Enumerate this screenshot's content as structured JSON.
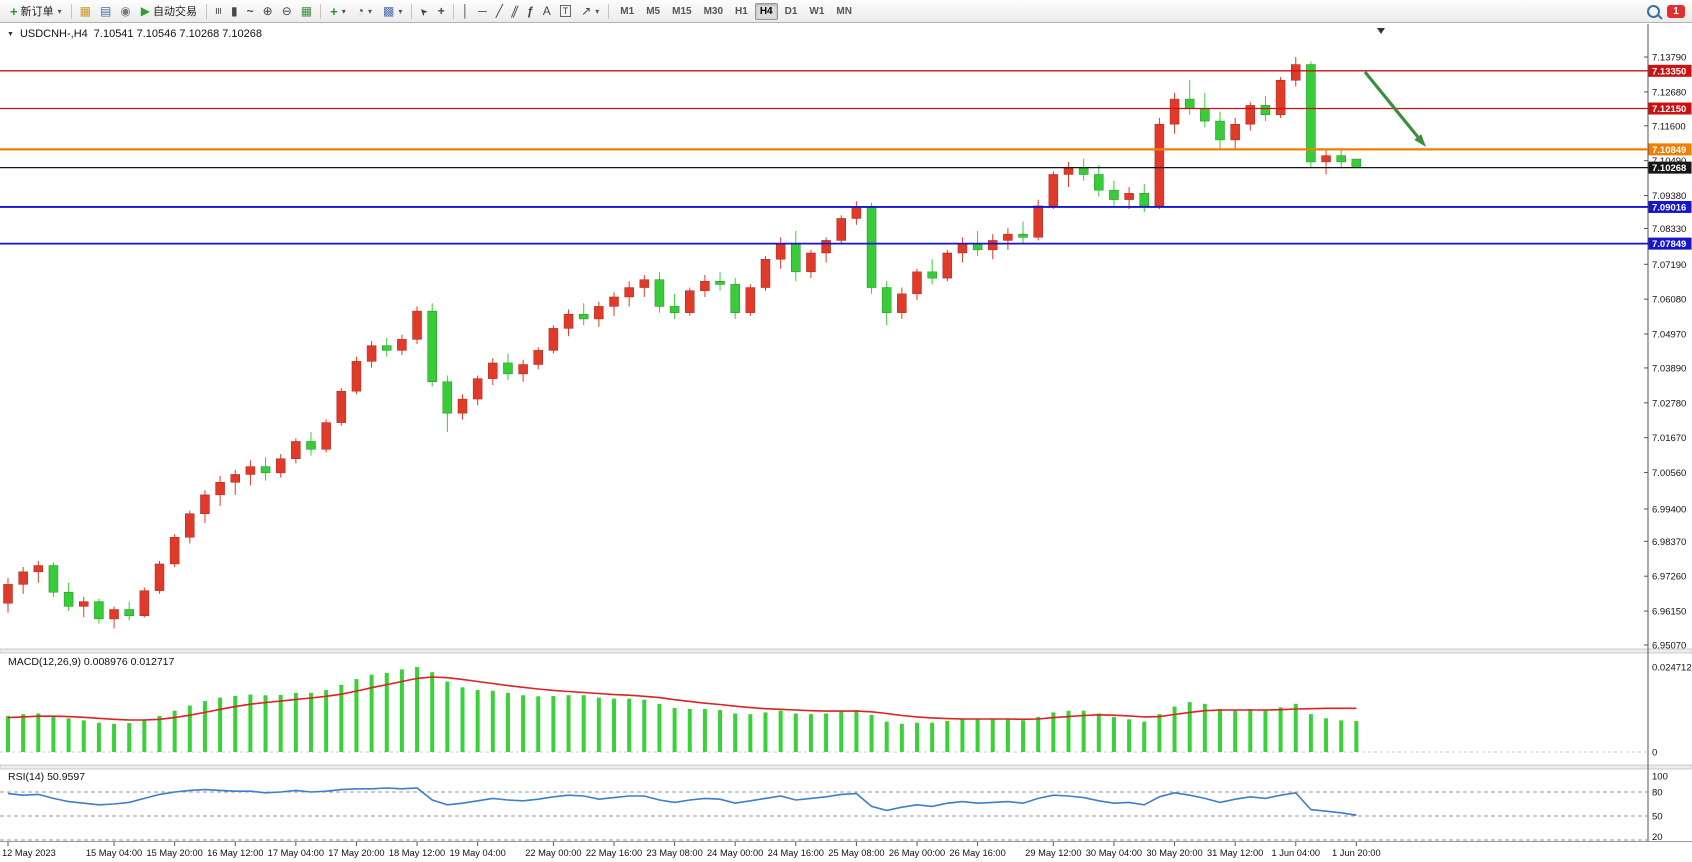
{
  "toolbar": {
    "new_order": "新订单",
    "autotrade": "自动交易",
    "timeframes": [
      "M1",
      "M5",
      "M15",
      "M30",
      "H1",
      "H4",
      "D1",
      "W1",
      "MN"
    ],
    "active_timeframe": "H4",
    "notification_count": "1"
  },
  "icons": {
    "collapse": "▼",
    "caret": "▾",
    "plus": "+",
    "charts": "▦",
    "profiles": "▤",
    "data_window": "◉",
    "play": "▶",
    "bars": "≡",
    "candle": "▮",
    "line": "~",
    "zoom_in": "⊕",
    "zoom_out": "⊖",
    "tile": "▦",
    "clock": "◔",
    "template": "▩",
    "cursor": "➤",
    "crosshair": "+",
    "vline": "│",
    "hline": "─",
    "trendline": "╱",
    "channel": "∥",
    "fibonacci": "ƒ",
    "text": "A",
    "text_label": "T",
    "shapes": "↗",
    "scroll_marker": "▼"
  },
  "chart_data": {
    "type": "candlestick",
    "symbol": "USDCNH-,H4",
    "quote_string": "7.10541 7.10546 7.10268 7.10268",
    "current": {
      "open": 7.10541,
      "high": 7.10546,
      "low": 7.10268,
      "close": 7.10268
    },
    "bull_color": "#e03a2a",
    "bear_color": "#39cc39",
    "bull_border": "#a8281c",
    "bear_border": "#1d8f1d",
    "y_axis_labels": [
      "7.13790",
      "7.12680",
      "7.11600",
      "7.10490",
      "7.09380",
      "7.08330",
      "7.07190",
      "7.06080",
      "7.04970",
      "7.03890",
      "7.02780",
      "7.01670",
      "7.00560",
      "6.99400",
      "6.98370",
      "6.97260",
      "6.96150",
      "6.95070"
    ],
    "ylim": [
      6.9507,
      7.1379
    ],
    "candles": [
      [
        6.964,
        6.972,
        6.961,
        6.97
      ],
      [
        6.97,
        6.9755,
        6.967,
        6.974
      ],
      [
        6.974,
        6.9775,
        6.9705,
        6.976
      ],
      [
        6.976,
        6.977,
        6.966,
        6.9675
      ],
      [
        6.9675,
        6.9705,
        6.9615,
        6.963
      ],
      [
        6.963,
        6.966,
        6.9595,
        6.9645
      ],
      [
        6.9645,
        6.9655,
        6.9575,
        6.959
      ],
      [
        6.959,
        6.963,
        6.956,
        6.962
      ],
      [
        6.962,
        6.9645,
        6.9585,
        6.96
      ],
      [
        6.96,
        6.969,
        6.9595,
        6.968
      ],
      [
        6.968,
        6.9775,
        6.967,
        6.9765
      ],
      [
        6.9765,
        6.986,
        6.9755,
        6.985
      ],
      [
        6.985,
        6.9935,
        6.983,
        6.9925
      ],
      [
        6.9925,
        7.0,
        6.9895,
        6.9985
      ],
      [
        6.9985,
        7.0045,
        6.995,
        7.0025
      ],
      [
        7.0025,
        7.0065,
        6.9985,
        7.005
      ],
      [
        7.005,
        7.0095,
        7.0015,
        7.0075
      ],
      [
        7.0075,
        7.0105,
        7.003,
        7.0055
      ],
      [
        7.0055,
        7.0115,
        7.004,
        7.01
      ],
      [
        7.01,
        7.0165,
        7.0085,
        7.0155
      ],
      [
        7.0155,
        7.0185,
        7.011,
        7.013
      ],
      [
        7.013,
        7.0225,
        7.012,
        7.0215
      ],
      [
        7.0215,
        7.0325,
        7.0205,
        7.0315
      ],
      [
        7.0315,
        7.0425,
        7.0305,
        7.041
      ],
      [
        7.041,
        7.0475,
        7.039,
        7.046
      ],
      [
        7.046,
        7.0485,
        7.0425,
        7.0445
      ],
      [
        7.0445,
        7.0495,
        7.043,
        7.048
      ],
      [
        7.048,
        7.0585,
        7.0465,
        7.057
      ],
      [
        7.057,
        7.0595,
        7.033,
        7.0345
      ],
      [
        7.0345,
        7.0365,
        7.0185,
        7.0245
      ],
      [
        7.0245,
        7.0305,
        7.0225,
        7.029
      ],
      [
        7.029,
        7.0365,
        7.027,
        7.0355
      ],
      [
        7.0355,
        7.042,
        7.0335,
        7.0405
      ],
      [
        7.0405,
        7.0435,
        7.035,
        7.037
      ],
      [
        7.037,
        7.0415,
        7.0345,
        7.04
      ],
      [
        7.04,
        7.0455,
        7.0385,
        7.0445
      ],
      [
        7.0445,
        7.0525,
        7.0435,
        7.0515
      ],
      [
        7.0515,
        7.0575,
        7.049,
        7.056
      ],
      [
        7.056,
        7.0595,
        7.0525,
        7.0545
      ],
      [
        7.0545,
        7.06,
        7.052,
        7.0585
      ],
      [
        7.0585,
        7.063,
        7.0555,
        7.0615
      ],
      [
        7.0615,
        7.0665,
        7.0585,
        7.0645
      ],
      [
        7.0645,
        7.0685,
        7.0615,
        7.067
      ],
      [
        7.067,
        7.0695,
        7.0565,
        7.0585
      ],
      [
        7.0585,
        7.0625,
        7.0545,
        7.0565
      ],
      [
        7.0565,
        7.0645,
        7.0555,
        7.0635
      ],
      [
        7.0635,
        7.0685,
        7.0615,
        7.0665
      ],
      [
        7.0665,
        7.0695,
        7.0635,
        7.0655
      ],
      [
        7.0655,
        7.0675,
        7.0545,
        7.0565
      ],
      [
        7.0565,
        7.0655,
        7.0555,
        7.0645
      ],
      [
        7.0645,
        7.0745,
        7.0635,
        7.0735
      ],
      [
        7.0735,
        7.0805,
        7.0705,
        7.0785
      ],
      [
        7.0785,
        7.0825,
        7.0665,
        7.0695
      ],
      [
        7.0695,
        7.0765,
        7.0675,
        7.0755
      ],
      [
        7.0755,
        7.0805,
        7.0725,
        7.0795
      ],
      [
        7.0795,
        7.0875,
        7.0785,
        7.0865
      ],
      [
        7.0865,
        7.092,
        7.0845,
        7.09
      ],
      [
        7.09,
        7.0915,
        7.0625,
        7.0645
      ],
      [
        7.0645,
        7.0665,
        7.0525,
        7.0565
      ],
      [
        7.0565,
        7.0645,
        7.0545,
        7.0625
      ],
      [
        7.0625,
        7.0705,
        7.0605,
        7.0695
      ],
      [
        7.0695,
        7.0735,
        7.0655,
        7.0675
      ],
      [
        7.0675,
        7.0765,
        7.0665,
        7.0755
      ],
      [
        7.0755,
        7.0805,
        7.0725,
        7.0785
      ],
      [
        7.0785,
        7.0825,
        7.0745,
        7.0765
      ],
      [
        7.0765,
        7.0815,
        7.0735,
        7.0795
      ],
      [
        7.0795,
        7.0835,
        7.0765,
        7.0815
      ],
      [
        7.0815,
        7.0855,
        7.0785,
        7.0805
      ],
      [
        7.0805,
        7.0925,
        7.0795,
        7.0905
      ],
      [
        7.0905,
        7.1015,
        7.0895,
        7.1005
      ],
      [
        7.1005,
        7.1045,
        7.0965,
        7.1025
      ],
      [
        7.1025,
        7.1055,
        7.0985,
        7.1005
      ],
      [
        7.1005,
        7.1035,
        7.0935,
        7.0955
      ],
      [
        7.0955,
        7.0985,
        7.0905,
        7.0925
      ],
      [
        7.0925,
        7.0965,
        7.0895,
        7.0945
      ],
      [
        7.0945,
        7.0975,
        7.0885,
        7.0905
      ],
      [
        7.0905,
        7.1185,
        7.0895,
        7.1165
      ],
      [
        7.1165,
        7.1265,
        7.1135,
        7.1245
      ],
      [
        7.1245,
        7.1305,
        7.1195,
        7.1215
      ],
      [
        7.1215,
        7.1265,
        7.1155,
        7.1175
      ],
      [
        7.1175,
        7.1205,
        7.1085,
        7.1115
      ],
      [
        7.1115,
        7.1185,
        7.1085,
        7.1165
      ],
      [
        7.1165,
        7.1235,
        7.1145,
        7.1225
      ],
      [
        7.1225,
        7.1255,
        7.1175,
        7.1195
      ],
      [
        7.1195,
        7.1315,
        7.1185,
        7.1305
      ],
      [
        7.1305,
        7.1379,
        7.1285,
        7.1355
      ],
      [
        7.1355,
        7.1365,
        7.1025,
        7.1045
      ],
      [
        7.1045,
        7.1085,
        7.1005,
        7.1065
      ],
      [
        7.1065,
        7.1085,
        7.1025,
        7.1045
      ],
      [
        7.10541,
        7.10546,
        7.10268,
        7.10268
      ]
    ],
    "time_labels": [
      {
        "i": 0,
        "t": "12 May 2023"
      },
      {
        "i": 7,
        "t": "15 May 04:00"
      },
      {
        "i": 11,
        "t": "15 May 20:00"
      },
      {
        "i": 15,
        "t": "16 May 12:00"
      },
      {
        "i": 19,
        "t": "17 May 04:00"
      },
      {
        "i": 23,
        "t": "17 May 20:00"
      },
      {
        "i": 27,
        "t": "18 May 12:00"
      },
      {
        "i": 31,
        "t": "19 May 04:00"
      },
      {
        "i": 36,
        "t": "22 May 00:00"
      },
      {
        "i": 40,
        "t": "22 May 16:00"
      },
      {
        "i": 44,
        "t": "23 May 08:00"
      },
      {
        "i": 48,
        "t": "24 May 00:00"
      },
      {
        "i": 52,
        "t": "24 May 16:00"
      },
      {
        "i": 56,
        "t": "25 May 08:00"
      },
      {
        "i": 60,
        "t": "26 May 00:00"
      },
      {
        "i": 64,
        "t": "26 May 16:00"
      },
      {
        "i": 69,
        "t": "29 May 12:00"
      },
      {
        "i": 73,
        "t": "30 May 04:00"
      },
      {
        "i": 77,
        "t": "30 May 20:00"
      },
      {
        "i": 81,
        "t": "31 May 12:00"
      },
      {
        "i": 85,
        "t": "1 Jun 04:00"
      },
      {
        "i": 89,
        "t": "1 Jun 20:00"
      }
    ],
    "levels": [
      {
        "price": 7.1335,
        "label": "7.13350",
        "color": "#cc1111",
        "width": 1.3
      },
      {
        "price": 7.1215,
        "label": "7.12150",
        "color": "#cc1111",
        "width": 1.3
      },
      {
        "price": 7.10849,
        "label": "7.10849",
        "color": "#f07e00",
        "width": 2.2
      },
      {
        "price": 7.10268,
        "label": "7.10268",
        "color": "#151515",
        "width": 1.2
      },
      {
        "price": 7.09016,
        "label": "7.09016",
        "color": "#1515cc",
        "width": 1.8
      },
      {
        "price": 7.07849,
        "label": "7.07849",
        "color": "#1515cc",
        "width": 1.8
      }
    ],
    "trend_arrow": {
      "from": [
        1365,
        72
      ],
      "to": [
        1426,
        147
      ],
      "color": "#3e8e41",
      "width": 3.2
    },
    "indicators": {
      "macd": {
        "name_label": "MACD(12,26,9) 0.008976 0.012717",
        "hist_color": "#3ad13a",
        "signal_color": "#dd2222",
        "axis_max_label": "0.024712",
        "axis_zero_label": "0",
        "histogram": [
          0.0105,
          0.011,
          0.0112,
          0.0105,
          0.0098,
          0.0092,
          0.0085,
          0.0082,
          0.0084,
          0.0092,
          0.0105,
          0.012,
          0.0135,
          0.0148,
          0.0158,
          0.0163,
          0.0167,
          0.0165,
          0.0166,
          0.0172,
          0.0172,
          0.018,
          0.0195,
          0.0212,
          0.0225,
          0.023,
          0.024,
          0.0247,
          0.0232,
          0.0205,
          0.0188,
          0.018,
          0.0178,
          0.0172,
          0.0165,
          0.0162,
          0.0163,
          0.0165,
          0.0165,
          0.0158,
          0.0155,
          0.0155,
          0.0152,
          0.014,
          0.0128,
          0.0125,
          0.0125,
          0.0122,
          0.0112,
          0.011,
          0.0115,
          0.012,
          0.0112,
          0.011,
          0.0112,
          0.0118,
          0.0122,
          0.0108,
          0.0088,
          0.0082,
          0.0085,
          0.0085,
          0.009,
          0.0095,
          0.0095,
          0.0095,
          0.0095,
          0.0092,
          0.0102,
          0.0115,
          0.012,
          0.012,
          0.0112,
          0.0102,
          0.0095,
          0.0088,
          0.011,
          0.0132,
          0.0145,
          0.014,
          0.0125,
          0.012,
          0.0125,
          0.0122,
          0.013,
          0.014,
          0.011,
          0.0098,
          0.0092,
          0.009
        ],
        "signal": [
          0.01,
          0.0102,
          0.0104,
          0.0104,
          0.0103,
          0.0101,
          0.0098,
          0.0095,
          0.0093,
          0.0093,
          0.0095,
          0.01,
          0.0107,
          0.0115,
          0.0124,
          0.0132,
          0.0139,
          0.0144,
          0.0148,
          0.0153,
          0.0157,
          0.0162,
          0.0168,
          0.0177,
          0.0187,
          0.0196,
          0.0205,
          0.0214,
          0.0218,
          0.0216,
          0.0211,
          0.0205,
          0.0199,
          0.0193,
          0.0188,
          0.0183,
          0.0179,
          0.0176,
          0.0173,
          0.017,
          0.0167,
          0.0165,
          0.0162,
          0.0158,
          0.0152,
          0.0147,
          0.0142,
          0.0138,
          0.0133,
          0.0129,
          0.0126,
          0.0124,
          0.0122,
          0.012,
          0.0119,
          0.0119,
          0.0119,
          0.0117,
          0.0112,
          0.0106,
          0.0102,
          0.0099,
          0.0097,
          0.0096,
          0.0096,
          0.0096,
          0.0096,
          0.0095,
          0.0096,
          0.01,
          0.0103,
          0.0106,
          0.0108,
          0.0107,
          0.0105,
          0.0102,
          0.0103,
          0.0109,
          0.0115,
          0.012,
          0.0122,
          0.0122,
          0.0122,
          0.0122,
          0.0123,
          0.0125,
          0.0126,
          0.0127,
          0.0127,
          0.0127
        ]
      },
      "rsi": {
        "name_label": "RSI(14) 50.9597",
        "color": "#3d7ecb",
        "levels": [
          80,
          50,
          20
        ],
        "axis_labels": [
          "100",
          "80",
          "50",
          "20"
        ],
        "values": [
          78,
          76,
          77,
          72,
          68,
          66,
          64,
          65,
          67,
          72,
          77,
          80,
          82,
          83,
          82,
          81,
          81,
          79,
          80,
          82,
          80,
          81,
          83,
          84,
          84,
          85,
          84,
          85,
          70,
          64,
          66,
          69,
          72,
          70,
          69,
          71,
          74,
          76,
          75,
          71,
          73,
          75,
          75,
          70,
          67,
          70,
          72,
          71,
          66,
          69,
          72,
          75,
          70,
          72,
          74,
          77,
          78,
          62,
          57,
          61,
          64,
          62,
          66,
          68,
          66,
          67,
          68,
          66,
          72,
          76,
          75,
          73,
          69,
          66,
          67,
          64,
          74,
          79,
          76,
          72,
          67,
          71,
          74,
          72,
          76,
          79,
          58,
          56,
          54,
          51
        ]
      }
    }
  }
}
